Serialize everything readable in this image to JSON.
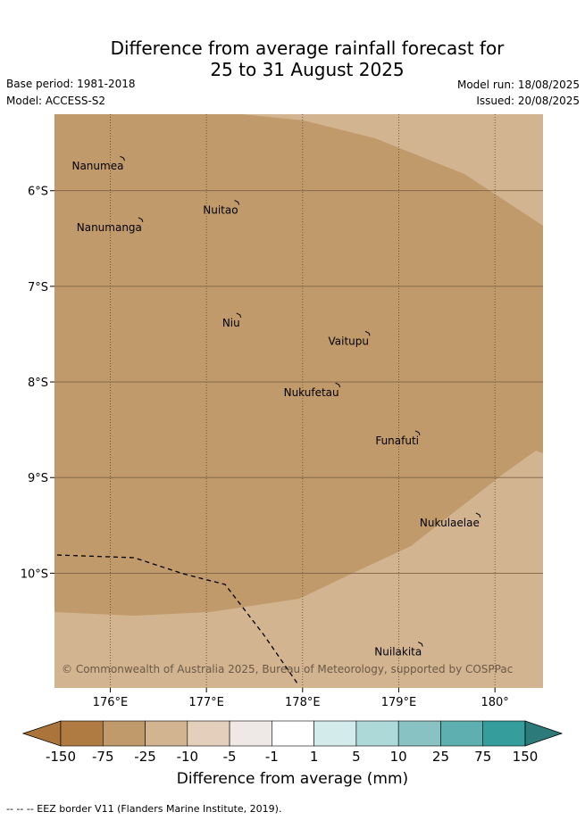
{
  "header": {
    "title_line1": "Difference from average rainfall forecast for",
    "title_line2": "25 to 31 August 2025",
    "base_period": "Base period: 1981-2018",
    "model": "Model: ACCESS-S2",
    "model_run": "Model run: 18/08/2025",
    "issued": "Issued: 20/08/2025"
  },
  "map": {
    "extent": {
      "lon_min": 175.42,
      "lon_max": 180.5,
      "lat_top": -5.2,
      "lat_bottom": -11.2
    },
    "lon_ticks": [
      {
        "value": 176,
        "label": "176°E"
      },
      {
        "value": 177,
        "label": "177°E"
      },
      {
        "value": 178,
        "label": "178°E"
      },
      {
        "value": 179,
        "label": "179°E"
      },
      {
        "value": 180,
        "label": "180°"
      }
    ],
    "lat_ticks": [
      {
        "value": -6,
        "label": "6°S"
      },
      {
        "value": -7,
        "label": "7°S"
      },
      {
        "value": -8,
        "label": "8°S"
      },
      {
        "value": -9,
        "label": "9°S"
      },
      {
        "value": -10,
        "label": "10°S"
      }
    ],
    "islands": [
      {
        "name": "Nanumea",
        "lon": 176.13,
        "lat": -5.65
      },
      {
        "name": "Nuitao",
        "lon": 177.32,
        "lat": -6.11
      },
      {
        "name": "Nanumanga",
        "lon": 176.32,
        "lat": -6.29
      },
      {
        "name": "Niu",
        "lon": 177.34,
        "lat": -7.29
      },
      {
        "name": "Vaitupu",
        "lon": 178.68,
        "lat": -7.48
      },
      {
        "name": "Nukufetau",
        "lon": 178.37,
        "lat": -8.02
      },
      {
        "name": "Funafuti",
        "lon": 179.2,
        "lat": -8.52
      },
      {
        "name": "Nukulaelae",
        "lon": 179.83,
        "lat": -9.38
      },
      {
        "name": "Nuilakita",
        "lon": 179.23,
        "lat": -10.73
      }
    ],
    "fill_colors": {
      "below_25_to_75": "#c19a6b",
      "below_10_to_25": "#d2b491"
    },
    "copyright": "© Commonwealth of Australia 2025, Bureau of Meteorology, supported by COSPPac"
  },
  "colorbar": {
    "labels": [
      "-150",
      "-75",
      "-25",
      "-10",
      "-5",
      "-1",
      "1",
      "5",
      "10",
      "25",
      "75",
      "150"
    ],
    "colors": [
      "#ab743b",
      "#b07a43",
      "#c19a6b",
      "#d2b491",
      "#e4cfbc",
      "#eee9e6",
      "#ffffff",
      "#d4ebeb",
      "#add9d9",
      "#89c2c2",
      "#5eb0b0",
      "#359e9d",
      "#2d7a7a"
    ],
    "title": "Difference from average (mm)"
  },
  "footnote": "--  --  -- EEZ border V11 (Flanders Marine Institute, 2019)."
}
